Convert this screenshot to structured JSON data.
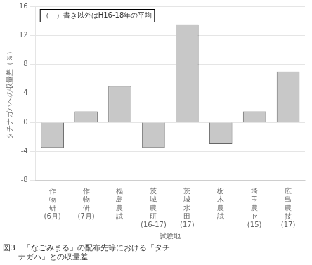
{
  "chart_data": {
    "type": "bar",
    "categories": [
      [
        "作",
        "物",
        "研",
        "(6月)"
      ],
      [
        "作",
        "物",
        "研",
        "(7月)"
      ],
      [
        "福",
        "島",
        "農",
        "試"
      ],
      [
        "茨",
        "城",
        "農",
        "研",
        "(16-17)"
      ],
      [
        "茨",
        "城",
        "水",
        "田",
        "(17)"
      ],
      [
        "栃",
        "木",
        "農",
        "試"
      ],
      [
        "埼",
        "玉",
        "農",
        "セ",
        "(15)"
      ],
      [
        "広",
        "島",
        "農",
        "技",
        "(17)"
      ]
    ],
    "values": [
      -3.5,
      1.5,
      5.0,
      -3.5,
      13.5,
      -3.0,
      1.5,
      7.0
    ],
    "color": "#c8c8c8",
    "ylim": [
      -8,
      16
    ],
    "yticks": [
      -8,
      -4,
      0,
      4,
      8,
      12,
      16
    ],
    "grid": true,
    "xlabel": "試験地",
    "ylabel": "タチナガハへの収量差（％）",
    "annotation": "（　）書き以外はH16-18年の平均",
    "caption": [
      "図3　「なごみまる」の配布先等における「タチ",
      "　　ナガハ」との収量差"
    ]
  }
}
